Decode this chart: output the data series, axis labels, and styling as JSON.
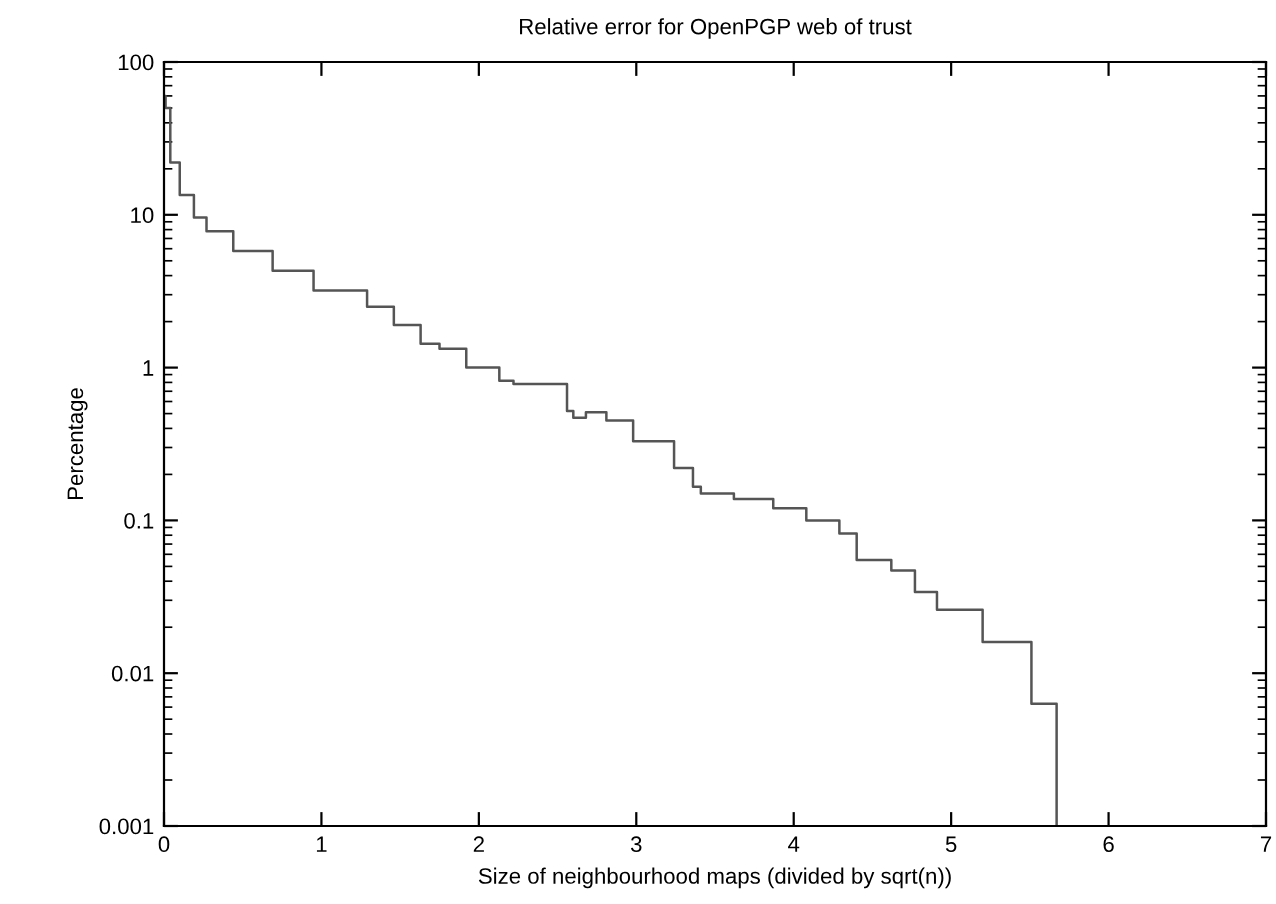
{
  "chart_data": {
    "type": "step",
    "title": "Relative error for OpenPGP web of trust",
    "xlabel": "Size of neighbourhood maps (divided by sqrt(n))",
    "ylabel": "Percentage",
    "log": "y",
    "grid": false,
    "legend": false,
    "xlim": [
      0,
      7
    ],
    "xticks": [
      0,
      1,
      2,
      3,
      4,
      5,
      6,
      7
    ],
    "ylim": [
      0.001,
      100
    ],
    "yticks": [
      0.001,
      0.01,
      0.1,
      1,
      10,
      100
    ],
    "series": [
      {
        "color": "#555555",
        "x": [
          0.0,
          0.01,
          0.04,
          0.1,
          0.19,
          0.27,
          0.44,
          0.69,
          0.95,
          1.29,
          1.46,
          1.63,
          1.75,
          1.92,
          2.13,
          2.22,
          2.56,
          2.6,
          2.68,
          2.81,
          2.98,
          3.24,
          3.36,
          3.41,
          3.62,
          3.87,
          4.08,
          4.29,
          4.4,
          4.62,
          4.77,
          4.91,
          5.2,
          5.51,
          5.67
        ],
        "values": [
          60,
          50,
          22,
          13.5,
          9.6,
          7.8,
          5.8,
          4.3,
          3.2,
          2.5,
          1.9,
          1.43,
          1.33,
          1.0,
          0.82,
          0.78,
          0.52,
          0.47,
          0.51,
          0.45,
          0.33,
          0.22,
          0.166,
          0.15,
          0.138,
          0.12,
          0.1,
          0.082,
          0.055,
          0.047,
          0.034,
          0.026,
          0.016,
          0.0063,
          0.001
        ]
      }
    ]
  }
}
